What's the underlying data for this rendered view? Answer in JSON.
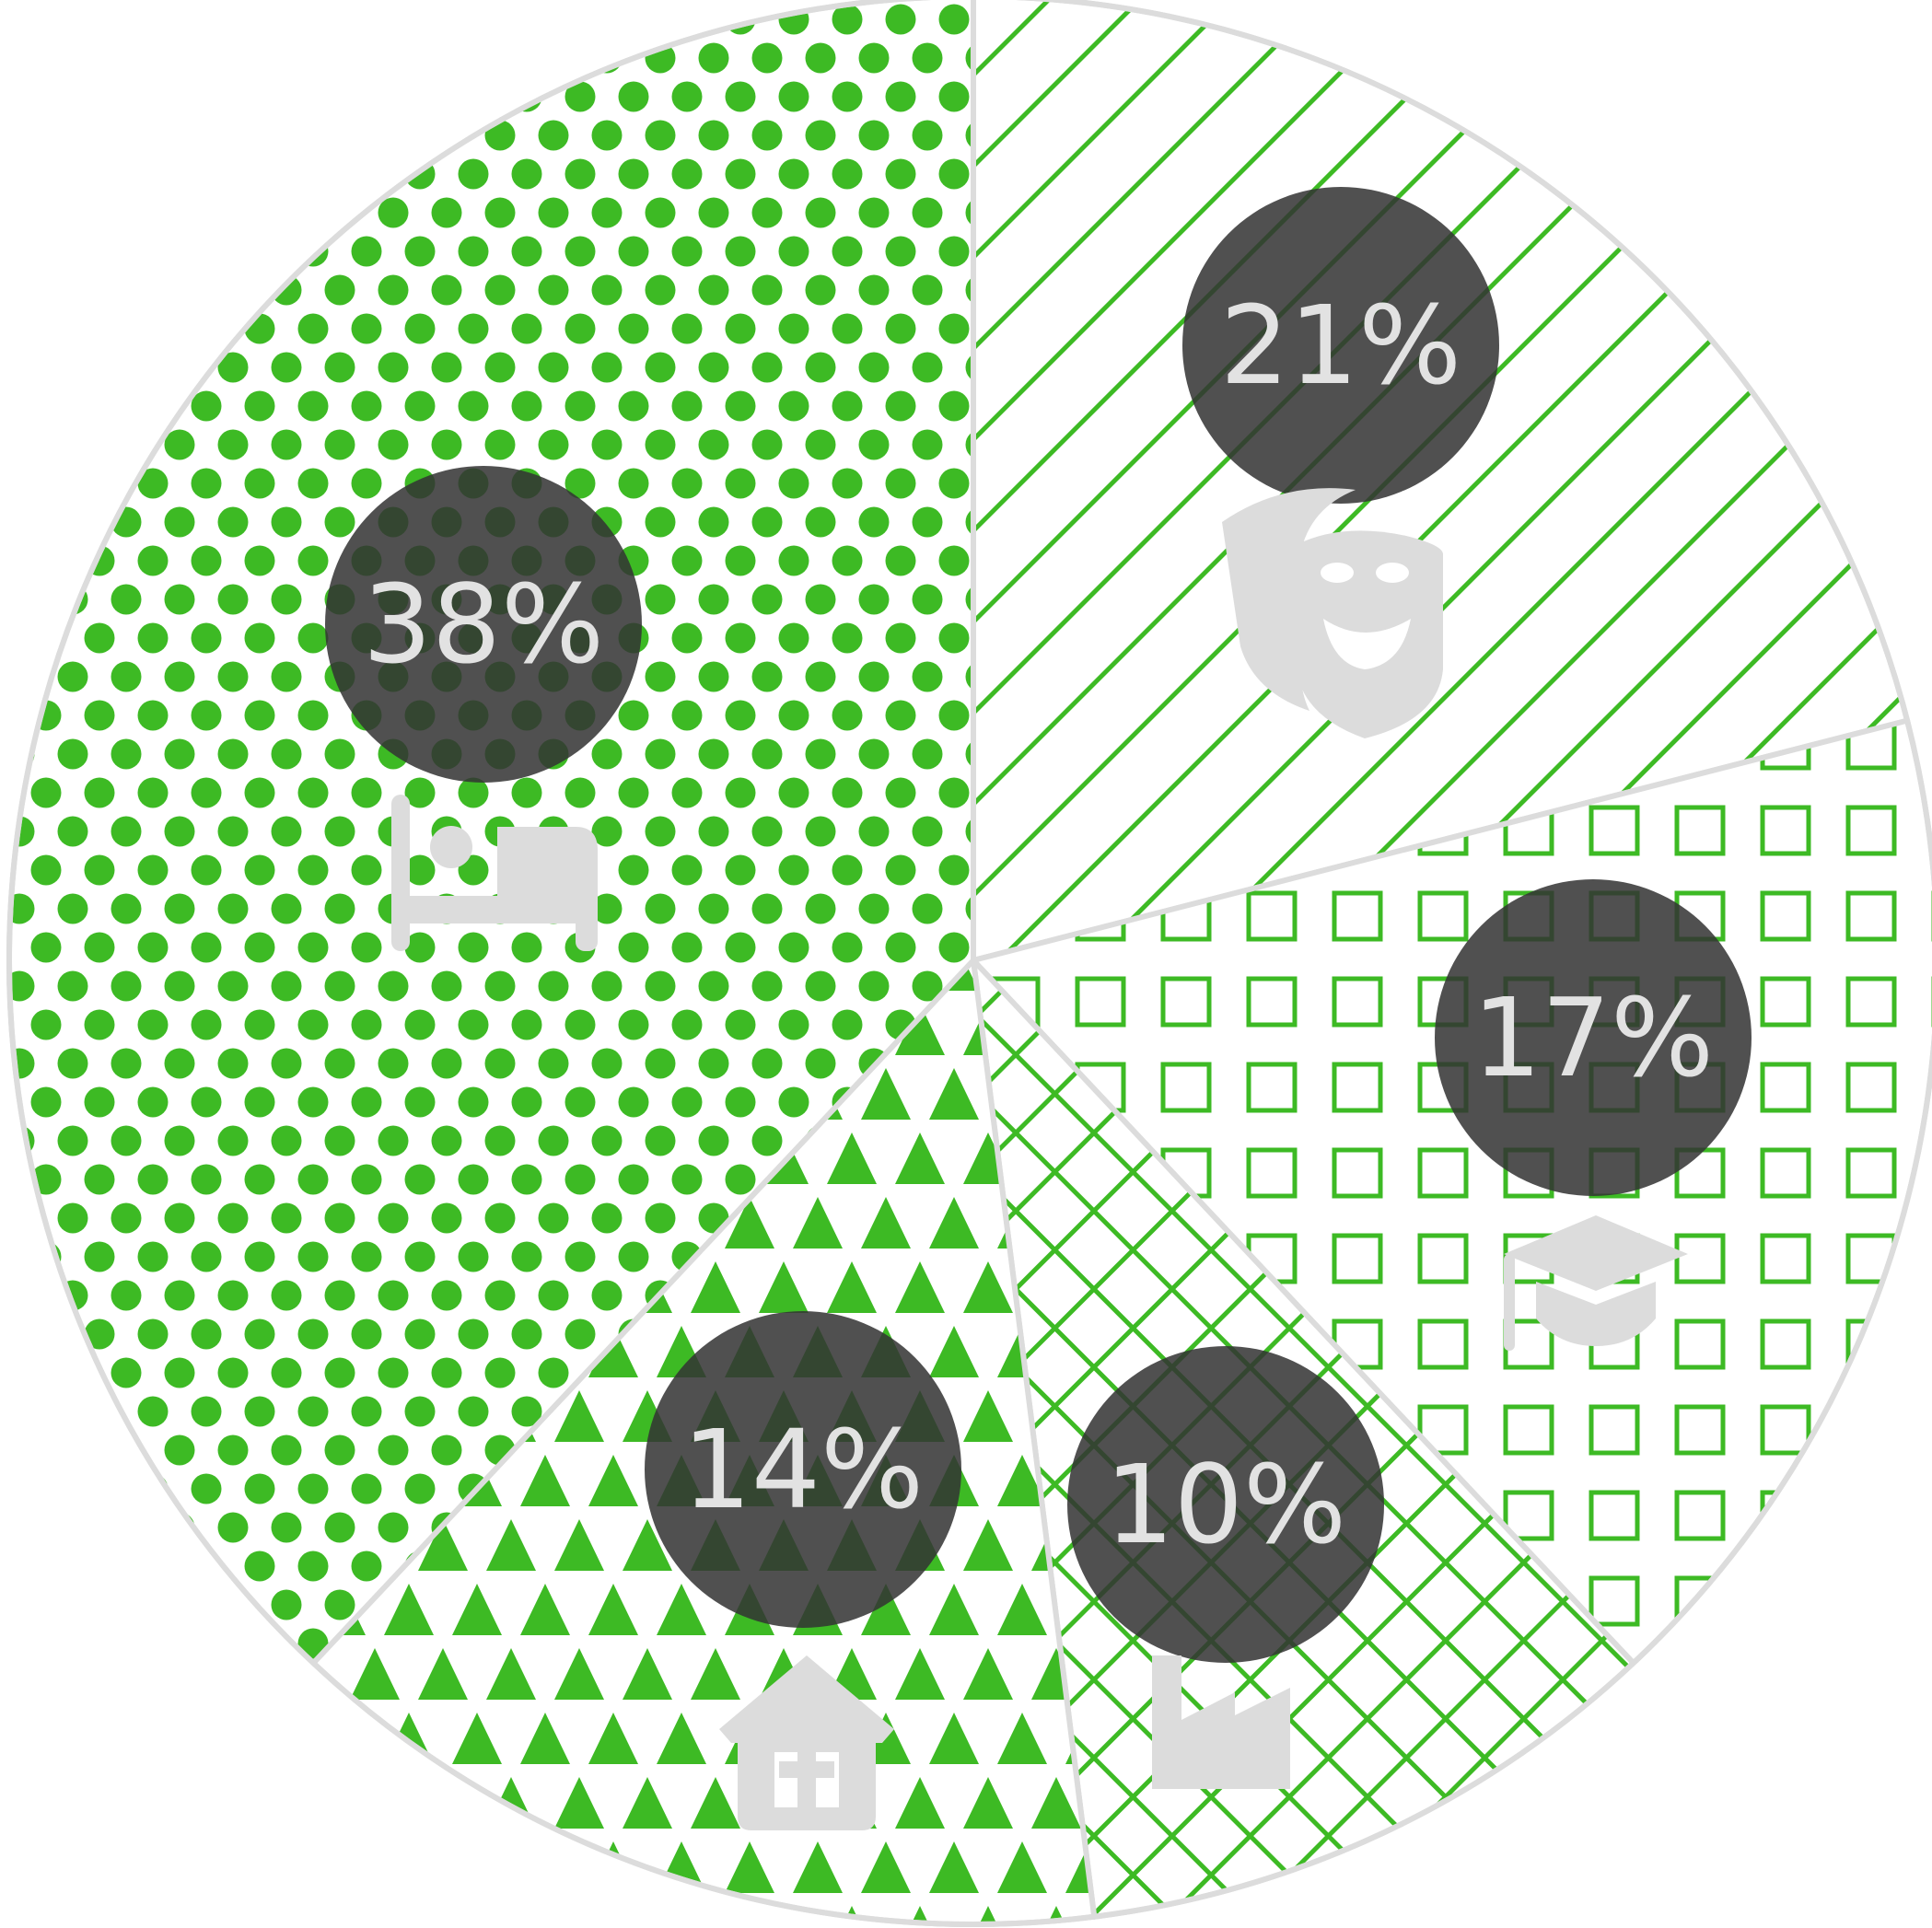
{
  "chart_data": {
    "type": "pie",
    "start_angle_deg": 0,
    "direction": "clockwise",
    "slices": [
      {
        "label": "21%",
        "value": 21,
        "icon": "theater-masks-icon",
        "pattern": "diagonal-lines"
      },
      {
        "label": "17%",
        "value": 17,
        "icon": "graduation-cap-icon",
        "pattern": "squares"
      },
      {
        "label": "10%",
        "value": 10,
        "icon": "factory-icon",
        "pattern": "crosshatch"
      },
      {
        "label": "14%",
        "value": 14,
        "icon": "house-icon",
        "pattern": "triangles"
      },
      {
        "label": "38%",
        "value": 38,
        "icon": "bed-icon",
        "pattern": "dots"
      }
    ],
    "legend": "none"
  },
  "colors": {
    "pattern": "#3dba24",
    "border": "#dcdcdc",
    "label_bubble": "#333333",
    "label_text": "#e2e2e2",
    "icon": "#dcdcdc"
  }
}
